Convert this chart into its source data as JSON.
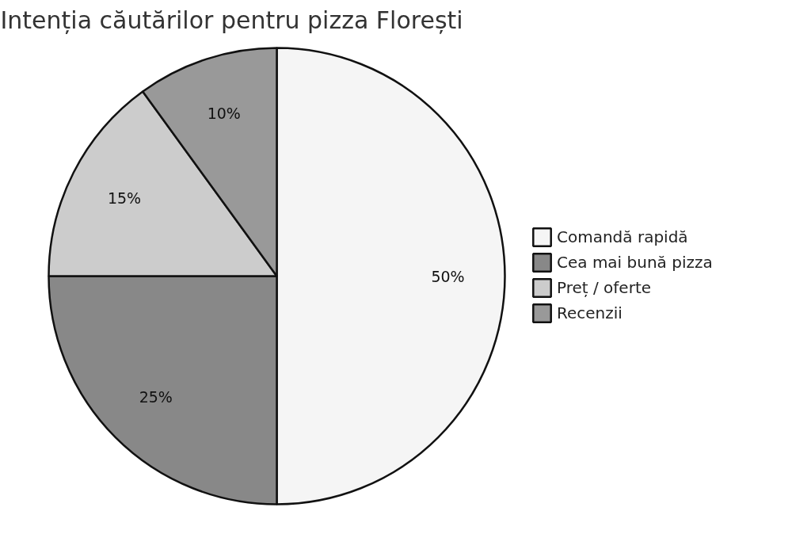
{
  "chart_data": {
    "type": "pie",
    "title": "Intenția căutărilor pentru pizza Florești",
    "categories": [
      "Comandă rapidă",
      "Cea mai bună pizza",
      "Preț / oferte",
      "Recenzii"
    ],
    "values": [
      50,
      25,
      15,
      10
    ],
    "colors": [
      "#f5f5f5",
      "#888888",
      "#cccccc",
      "#999999"
    ],
    "value_labels": [
      "50%",
      "25%",
      "15%",
      "10%"
    ],
    "legend": "right"
  }
}
